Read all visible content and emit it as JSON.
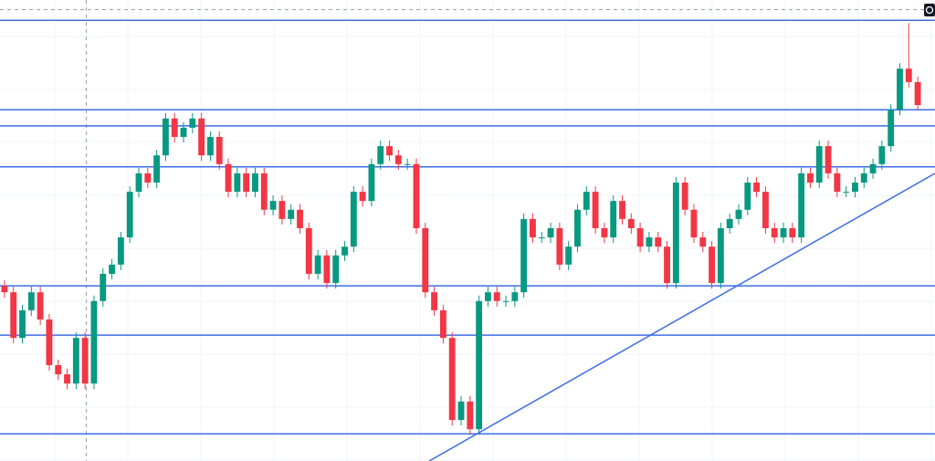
{
  "chart_data": {
    "type": "candlestick",
    "ylim": [
      0,
      100
    ],
    "xlim": [
      0,
      100
    ],
    "up_color": "#089981",
    "down_color": "#f23645",
    "line_color": "#3d6ee6",
    "open": [
      38.0,
      36.6,
      26.7,
      32.7,
      36.6,
      30.7,
      20.8,
      18.8,
      16.8,
      26.7,
      16.8,
      34.7,
      40.6,
      42.6,
      48.5,
      58.4,
      62.4,
      60.4,
      66.3,
      74.3,
      70.3,
      72.3,
      74.3,
      66.3,
      70.3,
      64.4,
      58.4,
      62.4,
      58.4,
      62.4,
      54.5,
      56.4,
      52.5,
      54.5,
      50.5,
      40.6,
      44.6,
      38.6,
      44.6,
      46.5,
      58.4,
      56.4,
      64.4,
      68.3,
      66.3,
      64.4,
      64.4,
      50.5,
      36.6,
      32.7,
      26.7,
      8.9,
      12.9,
      6.9,
      34.7,
      36.6,
      34.7,
      34.7,
      36.6,
      52.5,
      48.5,
      48.5,
      50.5,
      42.6,
      46.5,
      54.5,
      58.4,
      50.5,
      48.5,
      56.4,
      52.5,
      50.5,
      46.5,
      48.5,
      46.5,
      38.6,
      60.4,
      54.5,
      48.5,
      46.5,
      38.6,
      50.5,
      52.5,
      54.5,
      60.4,
      58.4,
      50.5,
      48.5,
      50.5,
      48.5,
      62.4,
      60.4,
      68.3,
      62.4,
      58.4,
      58.4,
      60.4,
      62.4,
      64.4,
      68.3,
      76.2,
      85.1,
      82.2
    ],
    "high": [
      39.2,
      37.8,
      33.9,
      37.8,
      37.8,
      31.9,
      22.0,
      20.0,
      27.9,
      27.9,
      35.9,
      41.8,
      43.8,
      49.7,
      59.6,
      63.6,
      63.6,
      67.5,
      75.5,
      75.5,
      73.5,
      75.5,
      75.5,
      71.5,
      71.5,
      65.6,
      63.6,
      63.6,
      63.6,
      63.6,
      57.6,
      57.6,
      55.7,
      55.7,
      51.7,
      45.8,
      45.8,
      45.8,
      47.7,
      59.6,
      59.6,
      65.6,
      69.5,
      69.5,
      67.5,
      65.6,
      65.6,
      51.7,
      37.8,
      33.9,
      27.9,
      14.1,
      14.1,
      35.9,
      37.8,
      37.8,
      35.9,
      37.8,
      53.7,
      53.7,
      49.7,
      51.7,
      51.7,
      47.7,
      55.7,
      59.6,
      59.6,
      51.7,
      57.6,
      57.6,
      53.7,
      51.7,
      49.7,
      49.7,
      47.7,
      61.6,
      61.6,
      55.7,
      49.7,
      47.7,
      51.7,
      53.7,
      55.7,
      61.6,
      61.6,
      59.6,
      51.7,
      51.7,
      51.7,
      63.6,
      63.6,
      69.5,
      69.5,
      63.6,
      59.6,
      61.6,
      63.6,
      65.6,
      69.5,
      77.4,
      86.3,
      95.0,
      83.4
    ],
    "low": [
      35.4,
      25.5,
      25.5,
      31.5,
      29.5,
      19.6,
      17.6,
      15.6,
      15.6,
      15.6,
      15.6,
      33.5,
      39.4,
      41.4,
      47.3,
      57.2,
      59.2,
      59.2,
      65.1,
      69.1,
      69.1,
      71.1,
      65.1,
      65.1,
      63.2,
      57.2,
      57.2,
      57.2,
      57.2,
      53.3,
      53.3,
      51.3,
      51.3,
      49.3,
      39.4,
      39.4,
      37.4,
      37.4,
      43.4,
      45.3,
      55.2,
      55.2,
      63.2,
      65.1,
      63.2,
      63.2,
      49.3,
      35.4,
      31.5,
      25.5,
      7.7,
      7.7,
      5.7,
      5.7,
      33.5,
      33.5,
      33.5,
      33.5,
      35.4,
      47.3,
      47.3,
      47.3,
      41.4,
      41.4,
      45.3,
      53.3,
      49.3,
      47.3,
      47.3,
      51.3,
      49.3,
      45.3,
      45.3,
      45.3,
      37.4,
      37.4,
      53.3,
      47.3,
      45.3,
      37.4,
      37.4,
      49.3,
      51.3,
      53.3,
      57.2,
      49.3,
      47.3,
      47.3,
      47.3,
      47.3,
      59.2,
      59.2,
      61.2,
      57.2,
      57.2,
      57.2,
      59.2,
      61.2,
      63.2,
      67.1,
      75.0,
      81.0,
      76.0
    ],
    "close": [
      36.6,
      26.7,
      32.7,
      36.6,
      30.7,
      20.8,
      18.8,
      16.8,
      26.7,
      16.8,
      34.7,
      40.6,
      42.6,
      48.5,
      58.4,
      62.4,
      60.4,
      66.3,
      74.3,
      70.3,
      72.3,
      74.3,
      66.3,
      70.3,
      64.4,
      58.4,
      62.4,
      58.4,
      62.4,
      54.5,
      56.4,
      52.5,
      54.5,
      50.5,
      40.6,
      44.6,
      38.6,
      44.6,
      46.5,
      58.4,
      56.4,
      64.4,
      68.3,
      66.3,
      64.4,
      64.4,
      50.5,
      36.6,
      32.7,
      26.7,
      8.9,
      12.9,
      6.9,
      34.7,
      36.6,
      34.7,
      34.7,
      36.6,
      52.5,
      48.5,
      48.5,
      50.5,
      42.6,
      46.5,
      54.5,
      58.4,
      50.5,
      48.5,
      56.4,
      52.5,
      50.5,
      46.5,
      48.5,
      46.5,
      38.6,
      60.4,
      54.5,
      48.5,
      46.5,
      38.6,
      50.5,
      52.5,
      54.5,
      60.4,
      58.4,
      50.5,
      48.5,
      50.5,
      48.5,
      62.4,
      60.4,
      68.3,
      62.4,
      58.4,
      58.4,
      60.4,
      62.4,
      64.4,
      68.3,
      76.2,
      85.1,
      82.2,
      77.2
    ],
    "levels": [
      95.6,
      76.2,
      72.7,
      63.8,
      38.0,
      27.3,
      5.9
    ],
    "trendline": {
      "x": [
        45.9,
        100
      ],
      "values": [
        0,
        62.4
      ]
    }
  }
}
